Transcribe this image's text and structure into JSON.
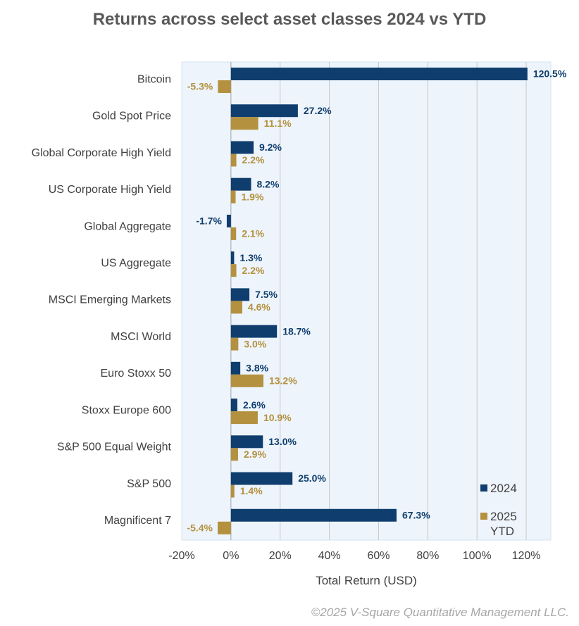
{
  "chart_data": {
    "type": "bar",
    "orientation": "horizontal",
    "title": "Returns across select asset classes 2024 vs YTD",
    "xlabel": "Total Return (USD)",
    "ylabel": "",
    "xlim": [
      -20,
      130
    ],
    "xticks": [
      -20,
      0,
      20,
      40,
      60,
      80,
      100,
      120
    ],
    "xtick_labels": [
      "-20%",
      "0%",
      "20%",
      "40%",
      "60%",
      "80%",
      "100%",
      "120%"
    ],
    "grid": true,
    "legend_position": "bottom-right",
    "categories": [
      "Bitcoin",
      "Gold Spot Price",
      "Global Corporate High Yield",
      "US Corporate High Yield",
      "Global Aggregate",
      "US Aggregate",
      "MSCI Emerging Markets",
      "MSCI World",
      "Euro Stoxx 50",
      "Stoxx Europe 600",
      "S&P 500 Equal Weight",
      "S&P 500",
      "Magnificent 7"
    ],
    "series": [
      {
        "name": "2024",
        "color": "#0f3e6e",
        "values": [
          120.5,
          27.2,
          9.2,
          8.2,
          -1.7,
          1.3,
          7.5,
          18.7,
          3.8,
          2.6,
          13.0,
          25.0,
          67.3
        ],
        "labels": [
          "120.5%",
          "27.2%",
          "9.2%",
          "8.2%",
          "-1.7%",
          "1.3%",
          "7.5%",
          "18.7%",
          "3.8%",
          "2.6%",
          "13.0%",
          "25.0%",
          "67.3%"
        ]
      },
      {
        "name": "2025 YTD",
        "color": "#b3913f",
        "values": [
          -5.3,
          11.1,
          2.2,
          1.9,
          2.1,
          2.2,
          4.6,
          3.0,
          13.2,
          10.9,
          2.9,
          1.4,
          -5.4
        ],
        "labels": [
          "-5.3%",
          "11.1%",
          "2.2%",
          "1.9%",
          "2.1%",
          "2.2%",
          "4.6%",
          "3.0%",
          "13.2%",
          "10.9%",
          "2.9%",
          "1.4%",
          "-5.4%"
        ]
      }
    ],
    "plot_background": "#eef4fb"
  },
  "legend": {
    "line1": [
      "2024"
    ],
    "line2": [
      "2025",
      "YTD"
    ]
  },
  "footer": "©2025 V-Square Quantitative Management LLC."
}
